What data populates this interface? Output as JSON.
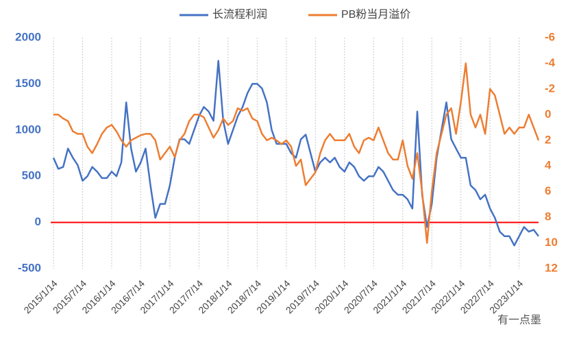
{
  "chart_data": {
    "type": "line",
    "categories": [
      "2015/1/14",
      null,
      null,
      null,
      null,
      null,
      "2015/7/14",
      null,
      null,
      null,
      null,
      null,
      "2016/1/14",
      null,
      null,
      null,
      null,
      null,
      "2016/7/14",
      null,
      null,
      null,
      null,
      null,
      "2017/1/14",
      null,
      null,
      null,
      null,
      null,
      "2017/7/14",
      null,
      null,
      null,
      null,
      null,
      "2018/1/14",
      null,
      null,
      null,
      null,
      null,
      "2018/7/14",
      null,
      null,
      null,
      null,
      null,
      "2019/1/14",
      null,
      null,
      null,
      null,
      null,
      "2019/7/14",
      null,
      null,
      null,
      null,
      null,
      "2020/1/14",
      null,
      null,
      null,
      null,
      null,
      "2020/7/14",
      null,
      null,
      null,
      null,
      null,
      "2021/1/14",
      null,
      null,
      null,
      null,
      null,
      "2021/7/14",
      null,
      null,
      null,
      null,
      null,
      "2022/1/14",
      null,
      null,
      null,
      null,
      null,
      "2022/7/14",
      null,
      null,
      null,
      null,
      null,
      "2023/1/14",
      null,
      null,
      null,
      null
    ],
    "series": [
      {
        "name": "长流程利润",
        "color": "#4472c4",
        "axis": "y",
        "values": [
          700,
          580,
          600,
          800,
          700,
          620,
          450,
          500,
          600,
          550,
          480,
          480,
          550,
          500,
          650,
          1300,
          800,
          550,
          650,
          800,
          400,
          50,
          200,
          200,
          400,
          700,
          900,
          900,
          850,
          1000,
          1150,
          1250,
          1200,
          1100,
          1750,
          1100,
          850,
          1000,
          1150,
          1250,
          1400,
          1500,
          1500,
          1450,
          1300,
          1000,
          850,
          850,
          850,
          750,
          700,
          900,
          950,
          750,
          550,
          650,
          700,
          650,
          700,
          600,
          550,
          650,
          600,
          500,
          450,
          500,
          500,
          600,
          550,
          450,
          350,
          300,
          300,
          250,
          150,
          1200,
          300,
          -50,
          200,
          700,
          1000,
          1300,
          900,
          800,
          700,
          700,
          400,
          350,
          250,
          300,
          150,
          50,
          -100,
          -150,
          -150,
          -250,
          -150,
          -50,
          -100,
          -80,
          -150
        ]
      },
      {
        "name": "PB粉当月溢价",
        "color": "#ed7d31",
        "axis": "y2",
        "values": [
          0,
          0,
          0.3,
          0.5,
          1.3,
          1.5,
          1.5,
          2.5,
          3,
          2.3,
          1.5,
          1,
          0.8,
          1.3,
          2,
          2.5,
          2,
          1.8,
          1.6,
          1.5,
          1.5,
          2,
          3.5,
          3,
          2.5,
          3.3,
          2,
          1.5,
          0.5,
          0,
          0,
          0.2,
          1,
          1.8,
          1.2,
          0.3,
          0.8,
          0.5,
          -0.5,
          -0.3,
          -0.5,
          0.3,
          0.5,
          1.5,
          2,
          1.8,
          2,
          2.3,
          2,
          2.5,
          4,
          3.5,
          5.5,
          5,
          4.5,
          3,
          2,
          1.5,
          2,
          2,
          2,
          1.5,
          2.5,
          3,
          2,
          1.8,
          2,
          1,
          2,
          3,
          3.5,
          3.5,
          2,
          4,
          5,
          3,
          6,
          10,
          6,
          3,
          1.5,
          0,
          -0.5,
          1.5,
          -1,
          -4,
          0,
          1,
          0,
          1.5,
          -2,
          -1.5,
          0,
          1.5,
          1,
          1.5,
          1,
          1,
          0,
          1,
          2
        ]
      }
    ],
    "ylim": [
      -500,
      2000
    ],
    "yticks": [
      -500,
      0,
      500,
      1000,
      1500,
      2000
    ],
    "y2lim": [
      12,
      -6
    ],
    "y2ticks": [
      12,
      10,
      8,
      6,
      4,
      2,
      0,
      -2,
      -4,
      -6
    ],
    "ref_line": {
      "value": 0,
      "color": "#ff0000"
    },
    "grid": true,
    "legend": "top",
    "annotation": "有一点墨"
  }
}
